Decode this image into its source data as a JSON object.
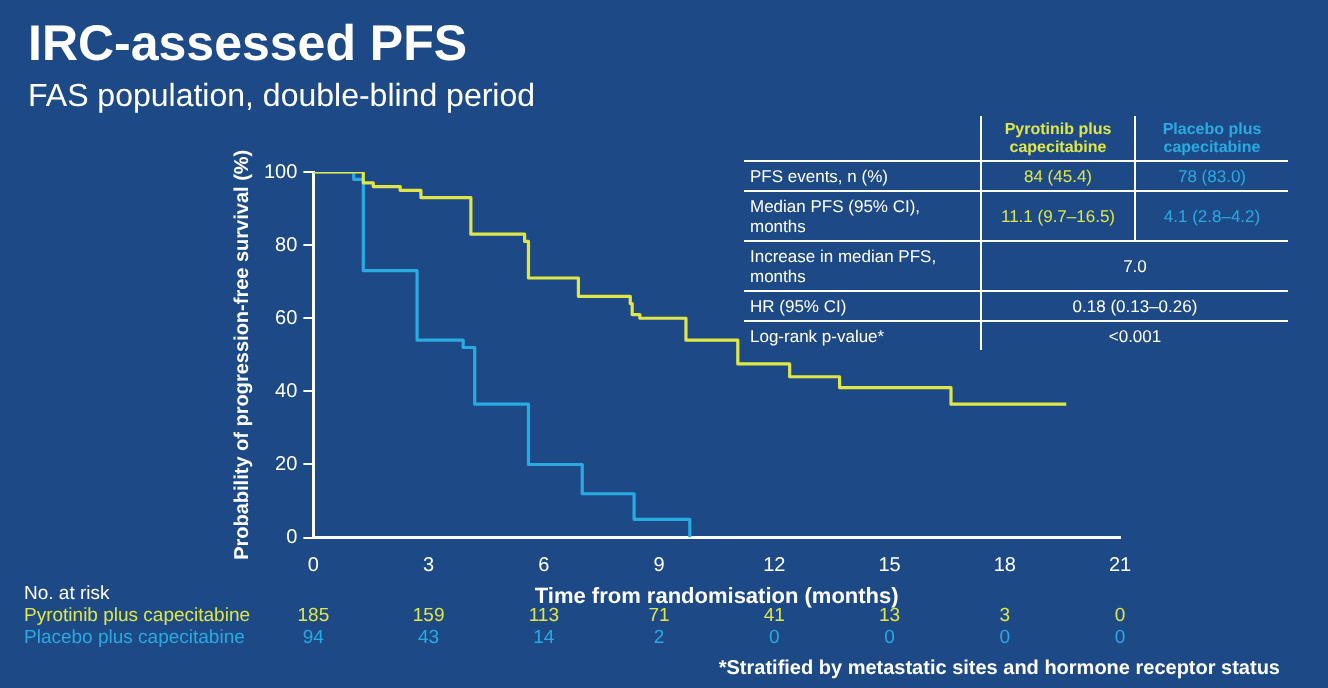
{
  "chart_data": [
    {
      "type": "step",
      "title": "IRC-assessed PFS",
      "subtitle": "FAS population, double-blind period",
      "xlabel": "Time from randomisation (months)",
      "ylabel": "Probability of progression-free survival (%)",
      "xlim": [
        0,
        21
      ],
      "xticks": [
        0,
        3,
        6,
        9,
        12,
        15,
        18,
        21
      ],
      "ylim": [
        0,
        100
      ],
      "yticks": [
        0,
        20,
        40,
        60,
        80,
        100
      ],
      "grid": false,
      "legend": false,
      "series": [
        {
          "name": "Pyrotinib plus capecitabine",
          "color": "#dfe64a",
          "x": [
            0,
            1.3,
            1.56,
            2.26,
            2.8,
            4.1,
            5.5,
            5.6,
            6.9,
            8.25,
            8.3,
            8.5,
            9.7,
            11.05,
            12.4,
            13.7,
            16.6,
            19.6
          ],
          "values": [
            100,
            97,
            96,
            95,
            93,
            83,
            81,
            71,
            66,
            64,
            61,
            60,
            54,
            47.5,
            44,
            41,
            36.5,
            36.5
          ]
        },
        {
          "name": "Placebo plus capecitabine",
          "color": "#29abe2",
          "x": [
            0,
            1.05,
            1.3,
            2.7,
            3.9,
            4.2,
            5.6,
            7.0,
            8.35,
            9.8
          ],
          "values": [
            100,
            98,
            73,
            54,
            52,
            36.5,
            20,
            12,
            5,
            0
          ]
        }
      ],
      "annotations": [
        "No. at risk",
        "185",
        "159",
        "113",
        "71",
        "41",
        "13",
        "3",
        "0",
        "94",
        "43",
        "14",
        "2",
        "0",
        "0",
        "0",
        "0",
        "*Stratified by metastatic sites and hormone receptor status"
      ]
    },
    {
      "type": "other",
      "colors": [
        "#dfe64a",
        "#29abe2"
      ],
      "annotations": [
        "Pyrotinib plus capecitabine",
        "Placebo plus capecitabine",
        "PFS events, n (%)",
        "84 (45.4)",
        "78 (83.0)",
        "Median PFS (95% CI), months",
        "11.1 (9.7–16.5)",
        "4.1 (2.8–4.2)",
        "Increase in median PFS, months",
        "7.0",
        "HR (95% CI)",
        "0.18 (0.13–0.26)",
        "Log-rank p-value*",
        "<0.001"
      ]
    }
  ]
}
